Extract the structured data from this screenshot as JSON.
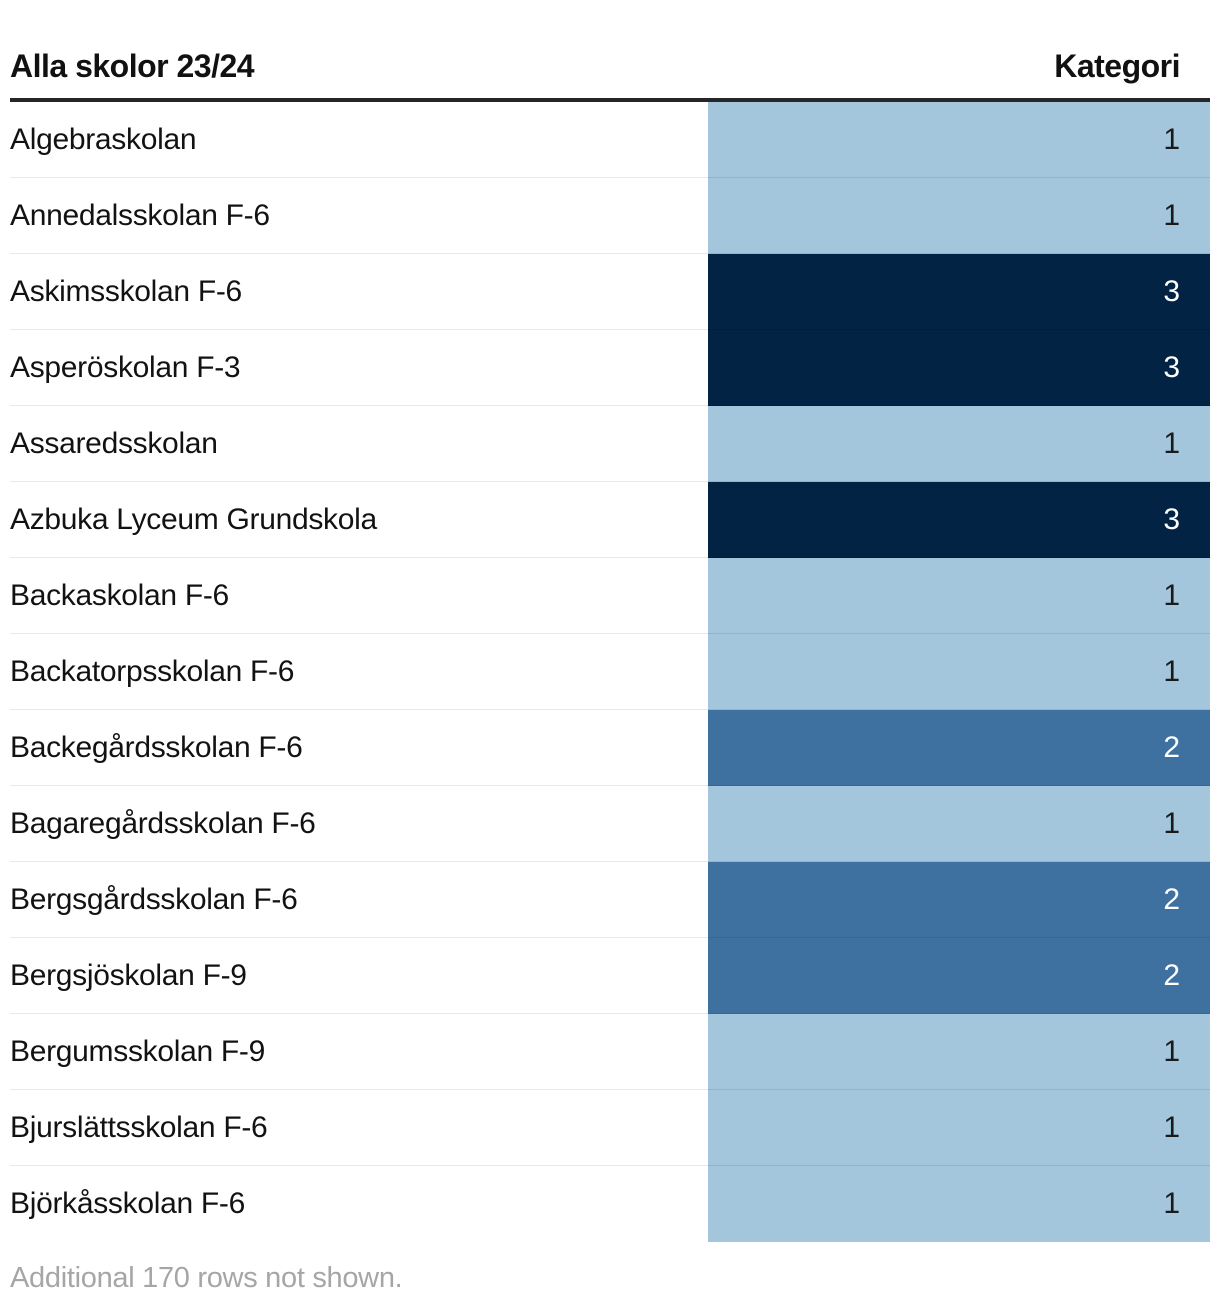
{
  "header": {
    "title": "Alla skolor 23/24",
    "category_label": "Kategori"
  },
  "table": {
    "rows": [
      {
        "name": "Algebraskolan",
        "category": 1
      },
      {
        "name": "Annedalsskolan F-6",
        "category": 1
      },
      {
        "name": "Askimsskolan F-6",
        "category": 3
      },
      {
        "name": "Asperöskolan F-3",
        "category": 3
      },
      {
        "name": "Assaredsskolan",
        "category": 1
      },
      {
        "name": "Azbuka Lyceum Grundskola",
        "category": 3
      },
      {
        "name": "Backaskolan F-6",
        "category": 1
      },
      {
        "name": "Backatorpsskolan F-6",
        "category": 1
      },
      {
        "name": "Backegårdsskolan F-6",
        "category": 2
      },
      {
        "name": "Bagaregårdsskolan F-6",
        "category": 1
      },
      {
        "name": "Bergsgårdsskolan F-6",
        "category": 2
      },
      {
        "name": "Bergsjöskolan F-9",
        "category": 2
      },
      {
        "name": "Bergumsskolan F-9",
        "category": 1
      },
      {
        "name": "Bjurslättsskolan F-6",
        "category": 1
      },
      {
        "name": "Björkåsskolan F-6",
        "category": 1
      }
    ]
  },
  "footer": {
    "note": "Additional 170 rows not shown."
  },
  "colors": {
    "category_1": "#a3c6dc",
    "category_2": "#3e70a0",
    "category_3": "#022344",
    "number_on_light": "#1a1a1a",
    "number_on_dark": "#ffffff",
    "header_rule": "#262626"
  },
  "chart_data": {
    "type": "table",
    "title": "Alla skolor 23/24",
    "columns": [
      "Alla skolor 23/24",
      "Kategori"
    ],
    "rows": [
      [
        "Algebraskolan",
        1
      ],
      [
        "Annedalsskolan F-6",
        1
      ],
      [
        "Askimsskolan F-6",
        3
      ],
      [
        "Asperöskolan F-3",
        3
      ],
      [
        "Assaredsskolan",
        1
      ],
      [
        "Azbuka Lyceum Grundskola",
        3
      ],
      [
        "Backaskolan F-6",
        1
      ],
      [
        "Backatorpsskolan F-6",
        1
      ],
      [
        "Backegårdsskolan F-6",
        2
      ],
      [
        "Bagaregårdsskolan F-6",
        1
      ],
      [
        "Bergsgårdsskolan F-6",
        2
      ],
      [
        "Bergsjöskolan F-9",
        2
      ],
      [
        "Bergumsskolan F-9",
        1
      ],
      [
        "Bjurslättsskolan F-6",
        1
      ],
      [
        "Björkåsskolan F-6",
        1
      ]
    ],
    "note": "Additional 170 rows not shown.",
    "color_encoding": {
      "1": "#a3c6dc",
      "2": "#3e70a0",
      "3": "#022344"
    },
    "value_text_colors": {
      "1": "#1a1a1a",
      "2": "#ffffff",
      "3": "#ffffff"
    },
    "legend_position": "none",
    "grid": "row-separators"
  }
}
